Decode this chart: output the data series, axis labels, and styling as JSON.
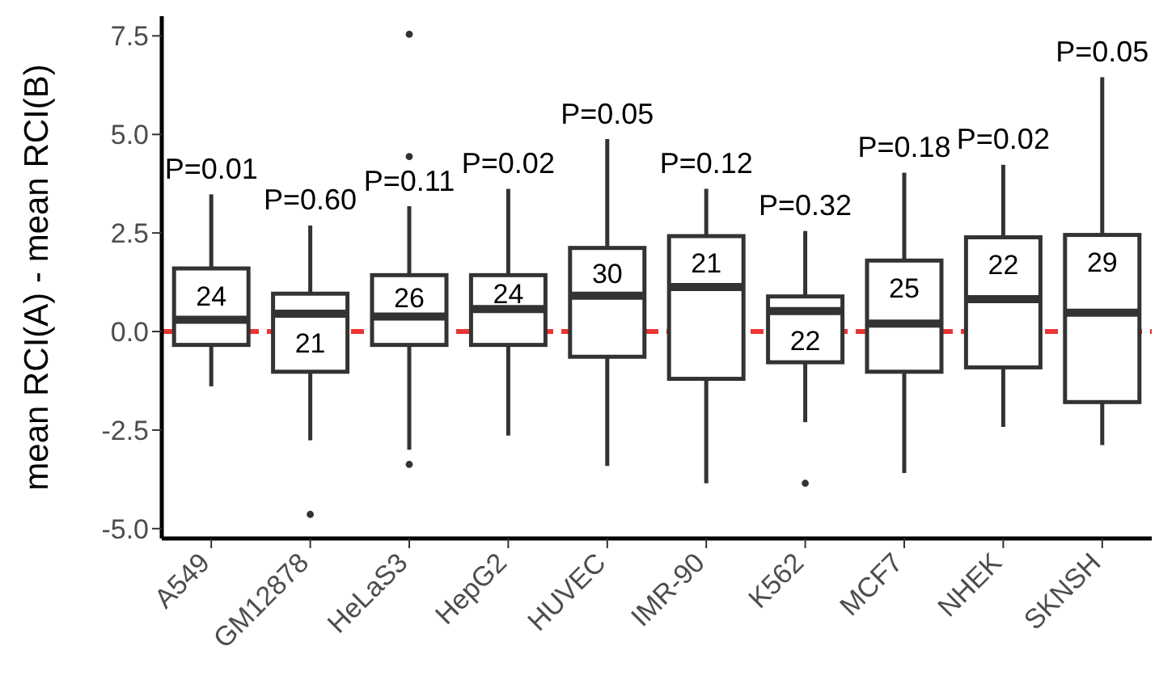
{
  "chart_data": {
    "type": "box",
    "ylabel": "mean RCI(A) - mean RCI(B)",
    "categories": [
      "A549",
      "GM12878",
      "HeLaS3",
      "HepG2",
      "HUVEC",
      "IMR-90",
      "K562",
      "MCF7",
      "NHEK",
      "SKNSH"
    ],
    "boxes": [
      {
        "low": -1.39,
        "q1": -0.34,
        "median": 0.3,
        "q3": 1.6,
        "high": 3.48
      },
      {
        "low": -2.76,
        "q1": -1.02,
        "median": 0.45,
        "q3": 0.96,
        "high": 2.69,
        "outliers": [
          -4.64
        ]
      },
      {
        "low": -3.0,
        "q1": -0.34,
        "median": 0.38,
        "q3": 1.43,
        "high": 3.18,
        "outliers": [
          -3.37,
          4.44,
          7.54
        ]
      },
      {
        "low": -2.64,
        "q1": -0.34,
        "median": 0.57,
        "q3": 1.43,
        "high": 3.62
      },
      {
        "low": -3.41,
        "q1": -0.64,
        "median": 0.91,
        "q3": 2.12,
        "high": 4.88
      },
      {
        "low": -3.85,
        "q1": -1.2,
        "median": 1.13,
        "q3": 2.42,
        "high": 3.62
      },
      {
        "low": -2.3,
        "q1": -0.78,
        "median": 0.52,
        "q3": 0.89,
        "high": 2.55,
        "outliers": [
          -3.85
        ]
      },
      {
        "low": -3.59,
        "q1": -1.02,
        "median": 0.2,
        "q3": 1.8,
        "high": 4.03
      },
      {
        "low": -2.42,
        "q1": -0.91,
        "median": 0.82,
        "q3": 2.39,
        "high": 4.23
      },
      {
        "low": -2.88,
        "q1": -1.79,
        "median": 0.48,
        "q3": 2.45,
        "high": 6.45
      }
    ],
    "ylim": [
      -5.25,
      8
    ],
    "yticks": [
      {
        "value": -5,
        "label": "-5.0"
      },
      {
        "value": -2.5,
        "label": "-2.5"
      },
      {
        "value": 0,
        "label": "0.0"
      },
      {
        "value": 2.5,
        "label": "2.5"
      },
      {
        "value": 5,
        "label": "5.0"
      },
      {
        "value": 7.5,
        "label": "7.5"
      }
    ],
    "ref_lines": [
      {
        "axis": "y",
        "value": 0,
        "color": "#ee3333",
        "line_style": "dashed"
      }
    ],
    "grid": false,
    "annotations": [
      "P=0.01",
      "P=0.60",
      "P=0.11",
      "P=0.02",
      "P=0.05",
      "P=0.12",
      "P=0.32",
      "P=0.18",
      "P=0.02",
      "P=0.05",
      "24",
      "21",
      "26",
      "24",
      "30",
      "21",
      "22",
      "25",
      "22",
      "29"
    ]
  }
}
